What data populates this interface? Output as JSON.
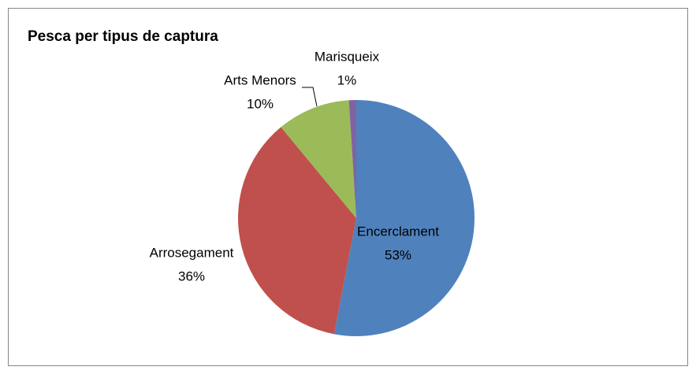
{
  "chart_data": {
    "type": "pie",
    "title": "Pesca per tipus de captura",
    "categories": [
      "Encerclament",
      "Arrosegament",
      "Arts Menors",
      "Marisqueix"
    ],
    "values": [
      53,
      36,
      10,
      1
    ],
    "value_labels": [
      "53%",
      "36%",
      "10%",
      "1%"
    ],
    "colors": [
      "#4f81bd",
      "#c0504d",
      "#9bbb59",
      "#8064a2"
    ]
  }
}
